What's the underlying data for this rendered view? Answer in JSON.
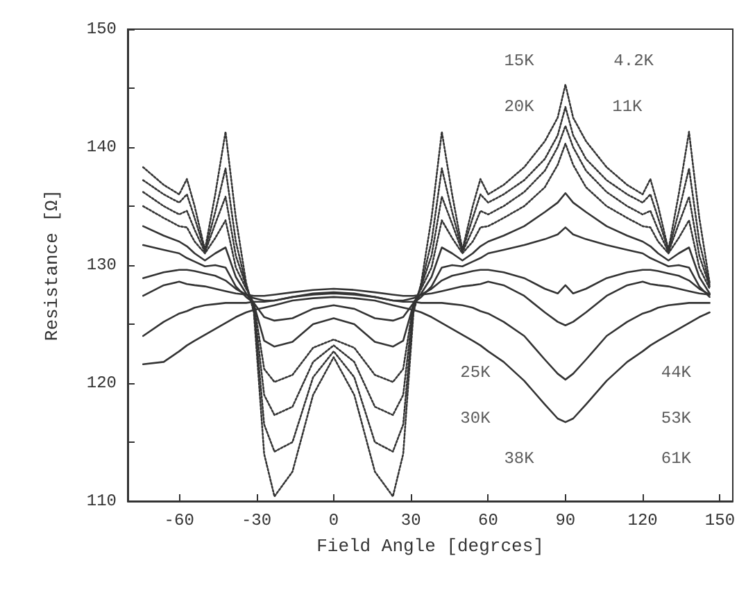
{
  "chart_data": {
    "type": "line",
    "xlabel": "Field Angle [degrces]",
    "ylabel": "Resistance [Ω]",
    "marker": "none",
    "xlim": [
      -80,
      155
    ],
    "xticks": [
      -60,
      -30,
      0,
      30,
      60,
      90,
      120,
      150
    ],
    "ylim": [
      110,
      150
    ],
    "yticks": [
      110,
      {
        "value": 115,
        "label": null
      },
      120,
      {
        "value": 125,
        "label": null
      },
      130,
      {
        "value": 135,
        "label": null
      },
      140,
      {
        "value": 145,
        "label": null
      },
      150
    ],
    "x": [
      -74,
      -66,
      -60,
      -57,
      -54,
      -50,
      -46,
      -42,
      -38,
      -34,
      -31,
      -27,
      -23,
      -16,
      -8,
      0,
      8,
      16,
      23,
      27,
      31,
      34,
      38,
      42,
      46,
      50,
      54,
      57,
      60,
      66,
      74,
      82,
      87,
      90,
      93,
      98,
      106,
      114,
      120,
      123,
      126,
      130,
      134,
      138,
      142,
      146
    ],
    "series": [
      {
        "color": "#333333",
        "line_style": "dotted",
        "values": [
          138.3,
          136.8,
          136,
          137.3,
          135,
          131.3,
          136,
          141.3,
          134,
          128.5,
          126,
          114,
          110.4,
          112.5,
          119,
          122.2,
          119,
          112.5,
          110.4,
          114,
          126,
          128.5,
          134,
          141.3,
          136,
          131.3,
          135,
          137.3,
          136,
          136.8,
          138.3,
          140.5,
          142.5,
          145.3,
          142.5,
          140.5,
          138.3,
          136.8,
          136,
          137.3,
          135,
          131.3,
          136,
          141.3,
          134,
          128.5
        ]
      },
      {
        "color": "#333333",
        "line_style": "dotted",
        "values": [
          137.2,
          136,
          135.3,
          136,
          134,
          131.2,
          134.5,
          138.2,
          132,
          128.3,
          126.3,
          116.5,
          114.2,
          115,
          120.5,
          122.7,
          120.5,
          115,
          114.2,
          116.5,
          126.3,
          128.3,
          132,
          138.2,
          134.5,
          131.2,
          134,
          136,
          135.3,
          136,
          137.2,
          139,
          141,
          143.4,
          141,
          139,
          137.2,
          136,
          135.3,
          136,
          134,
          131.2,
          134.5,
          138.2,
          132,
          128.3
        ]
      },
      {
        "color": "#333333",
        "line_style": "dotted",
        "values": [
          136.2,
          135,
          134.3,
          134.6,
          133,
          131.1,
          133.5,
          135.8,
          130.8,
          128.2,
          126.6,
          119,
          117.3,
          118,
          121.8,
          123.2,
          121.8,
          118,
          117.3,
          119,
          126.6,
          128.2,
          130.8,
          135.8,
          133.5,
          131.1,
          133,
          134.6,
          134.3,
          135,
          136.2,
          138,
          140,
          141.8,
          140,
          138,
          136.2,
          135,
          134.3,
          134.6,
          133,
          131.1,
          133.5,
          135.8,
          130.8,
          128.2
        ]
      },
      {
        "color": "#333333",
        "line_style": "dotted",
        "values": [
          135,
          134,
          133.3,
          133.2,
          132,
          131,
          132.3,
          133.8,
          129.8,
          128,
          126.8,
          121.2,
          120.1,
          120.7,
          123,
          123.7,
          123,
          120.7,
          120.1,
          121.2,
          126.8,
          128,
          129.8,
          133.8,
          132.3,
          131,
          132,
          133.2,
          133.3,
          134,
          135,
          136.6,
          138.5,
          140.3,
          138.5,
          136.6,
          135,
          134,
          133.3,
          133.2,
          132,
          131,
          132.3,
          133.8,
          129.8,
          128
        ]
      },
      {
        "color": "#333333",
        "values": [
          133.3,
          132.5,
          132,
          131.6,
          131,
          130.4,
          131,
          131.5,
          129,
          127.6,
          126.7,
          123.6,
          123.1,
          123.5,
          125,
          125.5,
          125,
          123.5,
          123.1,
          123.6,
          126.7,
          127.6,
          129,
          131.5,
          131,
          130.4,
          131,
          131.6,
          132,
          132.5,
          133.3,
          134.5,
          135.3,
          136.1,
          135.3,
          134.5,
          133.3,
          132.5,
          132,
          131.6,
          131,
          130.4,
          131,
          131.5,
          129,
          127.6
        ]
      },
      {
        "color": "#333333",
        "values": [
          131.7,
          131.3,
          131,
          130.6,
          130.3,
          129.9,
          130,
          129.8,
          128.2,
          127.3,
          126.8,
          125.6,
          125.3,
          125.5,
          126.3,
          126.6,
          126.3,
          125.5,
          125.3,
          125.6,
          126.8,
          127.3,
          128.2,
          129.8,
          130,
          129.9,
          130.3,
          130.6,
          131,
          131.3,
          131.7,
          132.2,
          132.6,
          133.2,
          132.6,
          132.2,
          131.7,
          131.3,
          131,
          130.6,
          130.3,
          129.9,
          130,
          129.8,
          128.2,
          127.3
        ]
      },
      {
        "color": "#333333",
        "values": [
          128.9,
          129.4,
          129.6,
          129.6,
          129.5,
          129.3,
          129.1,
          128.7,
          128,
          127.5,
          127.2,
          127,
          127,
          127.3,
          127.6,
          127.7,
          127.6,
          127.3,
          127,
          127,
          127.2,
          127.5,
          128,
          128.7,
          129.1,
          129.3,
          129.5,
          129.6,
          129.6,
          129.4,
          128.9,
          128,
          127.6,
          128.3,
          127.6,
          128,
          128.9,
          129.4,
          129.6,
          129.6,
          129.5,
          129.3,
          129.1,
          128.7,
          128,
          127.5
        ]
      },
      {
        "color": "#333333",
        "values": [
          127.4,
          128.3,
          128.6,
          128.4,
          128.3,
          128.2,
          128,
          127.8,
          127.6,
          127.5,
          127.4,
          127.4,
          127.5,
          127.7,
          127.9,
          128,
          127.9,
          127.7,
          127.5,
          127.4,
          127.4,
          127.5,
          127.6,
          127.8,
          128,
          128.2,
          128.3,
          128.4,
          128.6,
          128.3,
          127.4,
          126,
          125.2,
          124.9,
          125.2,
          126,
          127.4,
          128.3,
          128.6,
          128.4,
          128.3,
          128.2,
          128,
          127.8,
          127.6,
          127.5
        ]
      },
      {
        "color": "#333333",
        "values": [
          124,
          125.2,
          125.9,
          126.1,
          126.4,
          126.6,
          126.7,
          126.8,
          126.8,
          126.8,
          126.9,
          126.9,
          127,
          127.3,
          127.5,
          127.6,
          127.5,
          127.3,
          127,
          126.9,
          126.9,
          126.8,
          126.8,
          126.8,
          126.7,
          126.6,
          126.4,
          126.1,
          125.9,
          125.2,
          124,
          122,
          120.8,
          120.3,
          120.8,
          122,
          124,
          125.2,
          125.9,
          126.1,
          126.4,
          126.6,
          126.7,
          126.8,
          126.8,
          126.8
        ]
      },
      {
        "color": "#333333",
        "values": [
          121.6,
          121.8,
          122.7,
          123.2,
          123.6,
          124.1,
          124.6,
          125.1,
          125.6,
          126,
          126.2,
          126.4,
          126.6,
          127,
          127.2,
          127.3,
          127.2,
          127,
          126.6,
          126.4,
          126.2,
          126,
          125.6,
          125.1,
          124.6,
          124.1,
          123.6,
          123.2,
          122.7,
          121.8,
          120.2,
          118.2,
          117,
          116.7,
          117,
          118.2,
          120.2,
          121.8,
          122.7,
          123.2,
          123.6,
          124.1,
          124.6,
          125.1,
          125.6,
          126
        ]
      }
    ],
    "annotations": [
      {
        "text": "15K",
        "x": 72,
        "y": 147.3
      },
      {
        "text": "4.2K",
        "x": 116.5,
        "y": 147.3
      },
      {
        "text": "20K",
        "x": 72,
        "y": 143.4
      },
      {
        "text": "11K",
        "x": 114,
        "y": 143.4
      },
      {
        "text": "25K",
        "x": 55,
        "y": 120.9
      },
      {
        "text": "30K",
        "x": 55,
        "y": 117
      },
      {
        "text": "38K",
        "x": 72,
        "y": 113.6
      },
      {
        "text": "44K",
        "x": 133,
        "y": 120.9
      },
      {
        "text": "53K",
        "x": 133,
        "y": 117
      },
      {
        "text": "61K",
        "x": 133,
        "y": 113.6
      }
    ]
  }
}
